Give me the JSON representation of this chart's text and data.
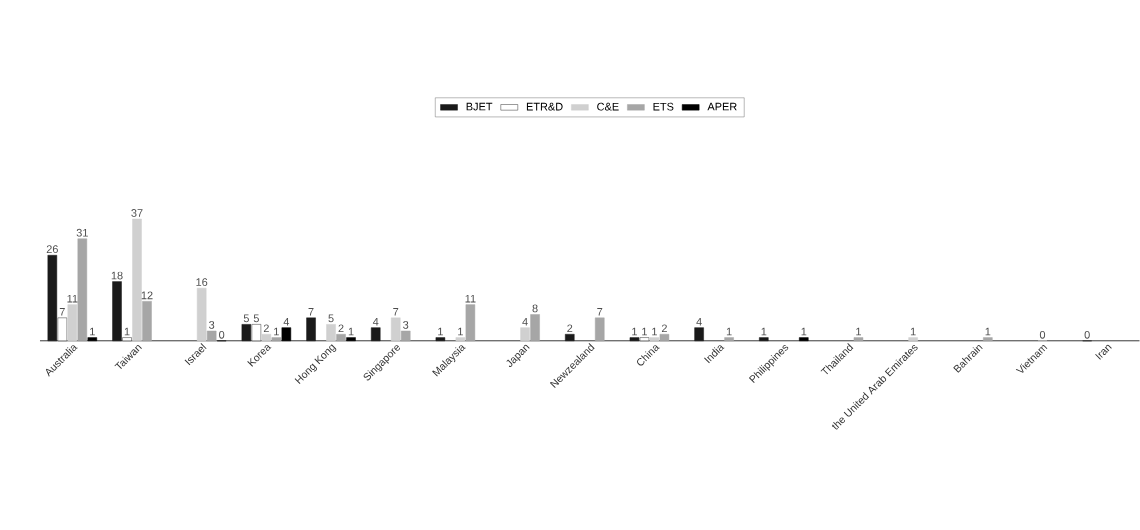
{
  "chart_data": {
    "type": "bar",
    "categories": [
      "Australia",
      "Taiwan",
      "Israel",
      "Korea",
      "Hong Kong",
      "Singapore",
      "Malaysia",
      "Japan",
      "Newzealand",
      "China",
      "India",
      "Philippines",
      "Thailand",
      "the United Arab Emirates",
      "Bahrain",
      "Vietnam",
      "Iran"
    ],
    "series": [
      {
        "name": "BJET",
        "color": "#1a1a1a",
        "values": [
          26,
          18,
          null,
          5,
          7,
          4,
          1,
          null,
          2,
          1,
          4,
          1,
          null,
          null,
          null,
          null,
          0
        ]
      },
      {
        "name": "ETR&D",
        "color": "#ffffff",
        "values": [
          7,
          1,
          null,
          5,
          null,
          null,
          null,
          null,
          null,
          1,
          null,
          null,
          null,
          null,
          null,
          null,
          null
        ]
      },
      {
        "name": "C&E",
        "color": "#d0d0d0",
        "values": [
          11,
          37,
          16,
          2,
          5,
          7,
          1,
          4,
          null,
          1,
          null,
          null,
          null,
          1,
          null,
          0,
          null
        ]
      },
      {
        "name": "ETS",
        "color": "#a6a6a6",
        "values": [
          31,
          12,
          3,
          1,
          2,
          3,
          11,
          8,
          7,
          2,
          1,
          null,
          1,
          null,
          1,
          null,
          null
        ]
      },
      {
        "name": "APER",
        "color": "#000000",
        "values": [
          1,
          null,
          0,
          4,
          1,
          null,
          null,
          null,
          null,
          null,
          null,
          1,
          null,
          null,
          null,
          null,
          null
        ]
      }
    ],
    "tick_labels": "x",
    "legend": "top",
    "data_labels": true
  }
}
